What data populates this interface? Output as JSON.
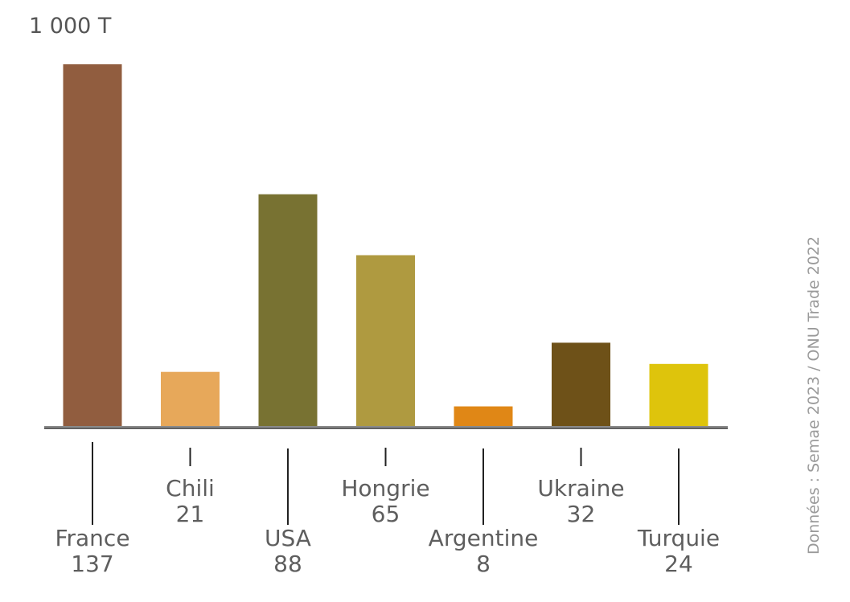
{
  "chart_data": {
    "type": "bar",
    "unit_label": "1 000 T",
    "categories": [
      "France",
      "Chili",
      "USA",
      "Hongrie",
      "Argentine",
      "Ukraine",
      "Turquie"
    ],
    "values": [
      137,
      21,
      88,
      65,
      8,
      32,
      24
    ],
    "value_labels": [
      "137",
      "21",
      "88",
      "65",
      "8",
      "32",
      "24"
    ],
    "colors": [
      "#915d3f",
      "#e7a85a",
      "#787232",
      "#af9a40",
      "#e08716",
      "#6e5118",
      "#dec40c"
    ],
    "ylim": [
      0,
      137
    ],
    "grid": false,
    "legend": "none",
    "source": "Données : Semae 2023 / ONU Trade 2022"
  }
}
